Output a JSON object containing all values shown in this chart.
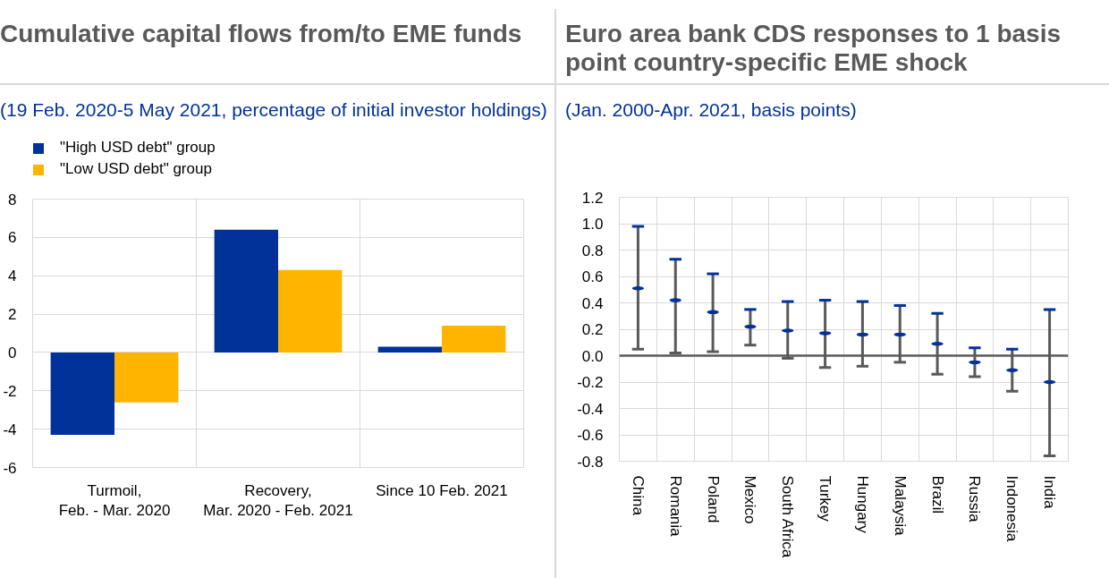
{
  "chart_data": [
    {
      "type": "bar",
      "title": "Cumulative capital flows from/to EME funds",
      "subtitle": "(19 Feb. 2020-5 May 2021, percentage of initial investor holdings)",
      "categories": [
        "Turmoil,\nFeb. - Mar. 2020",
        "Recovery,\nMar. 2020 - Feb. 2021",
        "Since 10 Feb. 2021"
      ],
      "series": [
        {
          "name": "\"High USD debt\" group",
          "color": "#003299",
          "values": [
            -4.3,
            6.4,
            0.3
          ]
        },
        {
          "name": "\"Low USD debt\" group",
          "color": "#ffb400",
          "values": [
            -2.6,
            4.3,
            1.4
          ]
        }
      ],
      "ylim": [
        -6,
        8
      ],
      "yticks": [
        -6,
        -4,
        -2,
        0,
        2,
        4,
        6,
        8
      ],
      "grid": true,
      "legend": "top left"
    },
    {
      "type": "scatter",
      "title": "Euro area bank CDS responses to 1 basis point country-specific EME shock",
      "subtitle": "(Jan. 2000-Apr. 2021, basis points)",
      "categories": [
        "China",
        "Romania",
        "Poland",
        "Mexico",
        "South Africa",
        "Turkey",
        "Hungary",
        "Malaysia",
        "Brazil",
        "Russia",
        "Indonesia",
        "India"
      ],
      "series": [
        {
          "color": "#003299",
          "values": [
            0.51,
            0.42,
            0.33,
            0.22,
            0.19,
            0.17,
            0.16,
            0.16,
            0.09,
            -0.05,
            -0.11,
            -0.2
          ],
          "errors": [
            [
              0.05,
              0.98
            ],
            [
              0.02,
              0.73
            ],
            [
              0.03,
              0.62
            ],
            [
              0.08,
              0.35
            ],
            [
              -0.02,
              0.41
            ],
            [
              -0.09,
              0.42
            ],
            [
              -0.08,
              0.41
            ],
            [
              -0.05,
              0.38
            ],
            [
              -0.14,
              0.32
            ],
            [
              -0.16,
              0.06
            ],
            [
              -0.27,
              0.05
            ],
            [
              -0.76,
              0.35
            ]
          ]
        }
      ],
      "ylim": [
        -0.8,
        1.2
      ],
      "yticks": [
        -0.8,
        -0.6,
        -0.4,
        -0.2,
        {
          "value": 0,
          "label": "0.0"
        },
        0.2,
        0.4,
        0.6,
        0.8,
        {
          "value": 1,
          "label": "1.0"
        },
        1.2
      ],
      "grid": true
    }
  ]
}
